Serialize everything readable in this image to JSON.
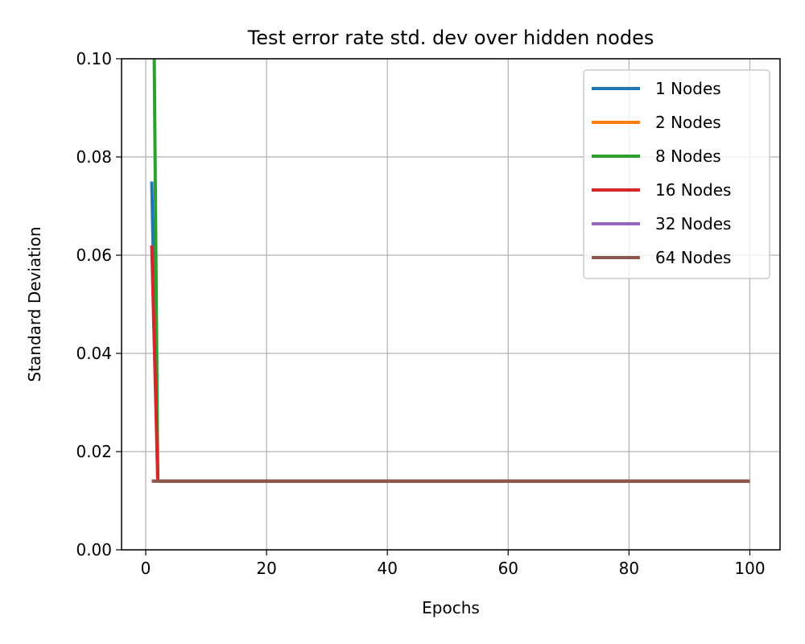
{
  "chart_data": {
    "type": "line",
    "title": "Test error rate std. dev over hidden nodes",
    "xlabel": "Epochs",
    "ylabel": "Standard Deviation",
    "xlim": [
      -4,
      105
    ],
    "ylim": [
      0,
      0.1
    ],
    "xticks": [
      0,
      20,
      40,
      60,
      80,
      100
    ],
    "xtick_labels": [
      "0",
      "20",
      "40",
      "60",
      "80",
      "100"
    ],
    "yticks": [
      0,
      0.02,
      0.04,
      0.06,
      0.08,
      0.1
    ],
    "ytick_labels": [
      "0.00",
      "0.02",
      "0.04",
      "0.06",
      "0.08",
      "0.10"
    ],
    "grid": true,
    "legend_position": "top-right",
    "series": [
      {
        "name": "1 Nodes",
        "color": "#1f77b4",
        "x": [
          1,
          2,
          100
        ],
        "y": [
          0.075,
          0.014,
          0.014
        ]
      },
      {
        "name": "2 Nodes",
        "color": "#ff7f0e",
        "x": [
          1,
          2,
          100
        ],
        "y": [
          0.014,
          0.014,
          0.014
        ]
      },
      {
        "name": "8 Nodes",
        "color": "#2ca02c",
        "x": [
          1,
          2,
          100
        ],
        "y": [
          0.16,
          0.014,
          0.014
        ]
      },
      {
        "name": "16 Nodes",
        "color": "#d62728",
        "x": [
          1,
          2,
          100
        ],
        "y": [
          0.062,
          0.014,
          0.014
        ]
      },
      {
        "name": "32 Nodes",
        "color": "#9467bd",
        "x": [
          1,
          2,
          100
        ],
        "y": [
          0.014,
          0.014,
          0.014
        ]
      },
      {
        "name": "64 Nodes",
        "color": "#8c564b",
        "x": [
          1,
          2,
          100
        ],
        "y": [
          0.014,
          0.014,
          0.014
        ]
      }
    ]
  }
}
